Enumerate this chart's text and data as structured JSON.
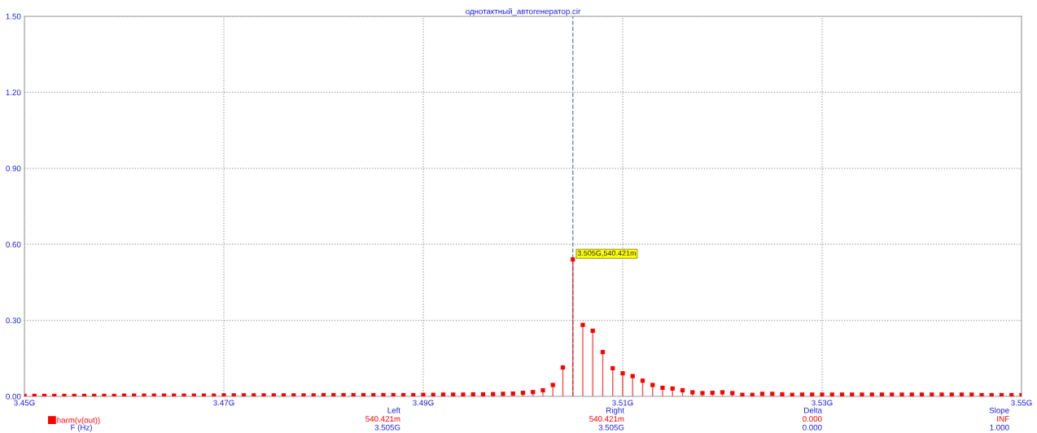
{
  "chart_data": {
    "type": "lollipop",
    "title": "однотактный_автогенератор.cir",
    "xlabel": "F (Hz)",
    "x": [
      3.45,
      3.451,
      3.452,
      3.453,
      3.454,
      3.455,
      3.456,
      3.457,
      3.458,
      3.459,
      3.46,
      3.461,
      3.462,
      3.463,
      3.464,
      3.465,
      3.466,
      3.467,
      3.468,
      3.469,
      3.47,
      3.471,
      3.472,
      3.473,
      3.474,
      3.475,
      3.476,
      3.477,
      3.478,
      3.479,
      3.48,
      3.481,
      3.482,
      3.483,
      3.484,
      3.485,
      3.486,
      3.487,
      3.488,
      3.489,
      3.49,
      3.491,
      3.492,
      3.493,
      3.494,
      3.495,
      3.496,
      3.497,
      3.498,
      3.499,
      3.5,
      3.501,
      3.502,
      3.503,
      3.504,
      3.505,
      3.506,
      3.507,
      3.508,
      3.509,
      3.51,
      3.511,
      3.512,
      3.513,
      3.514,
      3.515,
      3.516,
      3.517,
      3.518,
      3.519,
      3.52,
      3.521,
      3.522,
      3.523,
      3.524,
      3.525,
      3.526,
      3.527,
      3.528,
      3.529,
      3.53,
      3.531,
      3.532,
      3.533,
      3.534,
      3.535,
      3.536,
      3.537,
      3.538,
      3.539,
      3.54,
      3.541,
      3.542,
      3.543,
      3.544,
      3.545,
      3.546,
      3.547,
      3.548,
      3.549,
      3.55
    ],
    "series": [
      {
        "name": "harm(v(out))",
        "color": "#ff0000",
        "values": [
          0.002,
          0.002,
          0.002,
          0.002,
          0.002,
          0.002,
          0.002,
          0.002,
          0.002,
          0.002,
          0.003,
          0.003,
          0.003,
          0.003,
          0.003,
          0.003,
          0.003,
          0.003,
          0.003,
          0.003,
          0.004,
          0.004,
          0.004,
          0.004,
          0.004,
          0.004,
          0.004,
          0.004,
          0.004,
          0.004,
          0.005,
          0.005,
          0.005,
          0.005,
          0.005,
          0.005,
          0.005,
          0.005,
          0.005,
          0.005,
          0.006,
          0.006,
          0.007,
          0.007,
          0.007,
          0.008,
          0.008,
          0.009,
          0.01,
          0.011,
          0.014,
          0.017,
          0.024,
          0.045,
          0.114,
          0.540421,
          0.282,
          0.259,
          0.175,
          0.111,
          0.091,
          0.08,
          0.062,
          0.045,
          0.034,
          0.031,
          0.024,
          0.016,
          0.013,
          0.014,
          0.016,
          0.013,
          0.006,
          0.006,
          0.01,
          0.01,
          0.008,
          0.006,
          0.007,
          0.007,
          0.007,
          0.007,
          0.007,
          0.007,
          0.007,
          0.007,
          0.007,
          0.007,
          0.007,
          0.007,
          0.007,
          0.007,
          0.007,
          0.007,
          0.007,
          0.007,
          0.005,
          0.005,
          0.005,
          0.005,
          0.005
        ]
      }
    ],
    "xlim": [
      3.45,
      3.55
    ],
    "xticks": [
      {
        "value": 3.45,
        "label": "3.45G"
      },
      {
        "value": 3.47,
        "label": "3.47G"
      },
      {
        "value": 3.49,
        "label": "3.49G"
      },
      {
        "value": 3.51,
        "label": "3.51G"
      },
      {
        "value": 3.53,
        "label": "3.53G"
      },
      {
        "value": 3.55,
        "label": "3.55G"
      }
    ],
    "ylim": [
      0,
      1.5
    ],
    "yticks": [
      {
        "value": 0,
        "label": "0.00"
      },
      {
        "value": 0.3,
        "label": "0.30"
      },
      {
        "value": 0.6,
        "label": "0.60"
      },
      {
        "value": 0.9,
        "label": "0.90"
      },
      {
        "value": 1.2,
        "label": "1.20"
      },
      {
        "value": 1.5,
        "label": "1.50"
      }
    ],
    "grid": true,
    "marker": "square",
    "legend": "bottom left",
    "ref_lines": [
      {
        "axis": "x",
        "value": 3.505,
        "color": "#6c8c9c",
        "line_style": "dashed"
      }
    ],
    "annotations": [
      {
        "text": "3.505G,540.421m",
        "x": 3.505,
        "y": 0.540421
      },
      "Left",
      "540.421m",
      "3.505G",
      "Right",
      "540.421m",
      "3.505G",
      "Delta",
      "0.000",
      "0.000",
      "Slope",
      "INF",
      "1.000"
    ]
  }
}
